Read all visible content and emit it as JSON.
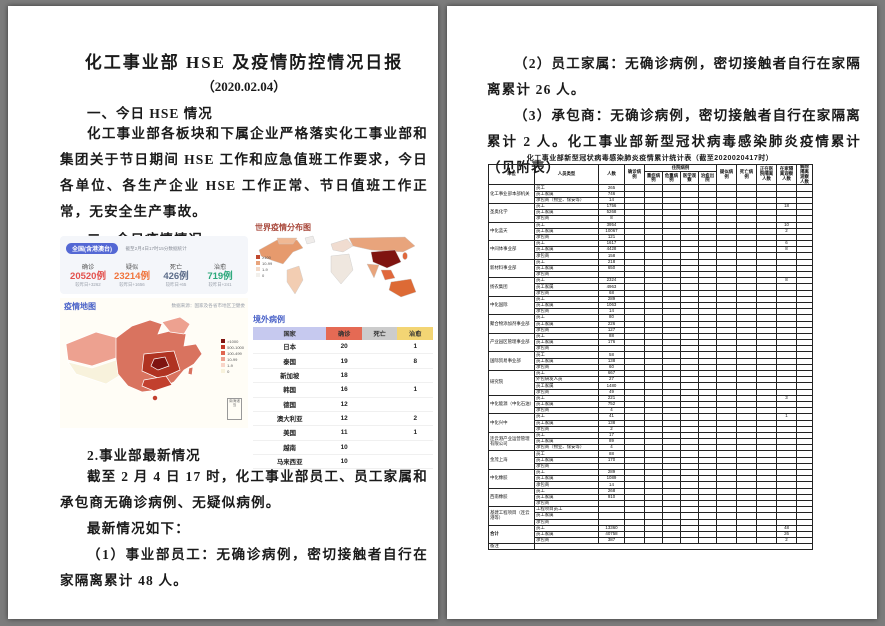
{
  "page1": {
    "title": "化工事业部 HSE 及疫情防控情况日报",
    "date": "（2020.02.04）",
    "section1_heading": "一、今日 HSE 情况",
    "para1": "化工事业部各板块和下属企业严格落实化工事业部和集团关于节日期间 HSE 工作和应急值班工作要求，今日各单位、各生产企业 HSE 工作正常、节日值班工作正常，无安全生产事故。",
    "section2_heading": "二、今日疫情情况",
    "stats": {
      "scope_pill": "全国(含港澳台)",
      "asof": "截至2月4日17时15分数据统计",
      "items": [
        {
          "label": "确诊",
          "value": "20520例",
          "delta": "较昨日+3262",
          "color": "#e3524e"
        },
        {
          "label": "疑似",
          "value": "23214例",
          "delta": "较昨日+1656",
          "color": "#f0743c"
        },
        {
          "label": "死亡",
          "value": "426例",
          "delta": "较昨日+65",
          "color": "#5d6d8a"
        },
        {
          "label": "治愈",
          "value": "719例",
          "delta": "较昨日+241",
          "color": "#2ba87b"
        }
      ]
    },
    "china_map": {
      "title": "疫情地图",
      "source": "数据来源：国家及各省市地区卫健委",
      "inset_label": "南海诸岛",
      "legend": [
        {
          "label": ">1000",
          "color": "#7f1410"
        },
        {
          "label": "500-1000",
          "color": "#c33a28"
        },
        {
          "label": "100-499",
          "color": "#e0654f"
        },
        {
          "label": "10-99",
          "color": "#eda190"
        },
        {
          "label": "1-9",
          "color": "#f8d5c8"
        },
        {
          "label": "0",
          "color": "#f8f2dc"
        }
      ]
    },
    "world_map": {
      "title": "世界疫情分布图",
      "legend": [
        {
          "label": "≥100",
          "color": "#c0492f"
        },
        {
          "label": "10-99",
          "color": "#e8a47c"
        },
        {
          "label": "1-9",
          "color": "#f2d9c8"
        },
        {
          "label": "0",
          "color": "#f2f0ec"
        }
      ]
    },
    "overseas": {
      "title": "境外病例",
      "headers": [
        {
          "label": "国家",
          "color": "#c6c9ef"
        },
        {
          "label": "确诊",
          "color": "#e56a54"
        },
        {
          "label": "死亡",
          "color": "#cccccc"
        },
        {
          "label": "治愈",
          "color": "#f3d574"
        }
      ],
      "rows": [
        [
          "日本",
          "20",
          "",
          "1"
        ],
        [
          "泰国",
          "19",
          "",
          "8"
        ],
        [
          "新加坡",
          "18",
          "",
          ""
        ],
        [
          "韩国",
          "16",
          "",
          "1"
        ],
        [
          "德国",
          "12",
          "",
          ""
        ],
        [
          "澳大利亚",
          "12",
          "",
          "2"
        ],
        [
          "美国",
          "11",
          "",
          "1"
        ],
        [
          "越南",
          "10",
          "",
          ""
        ],
        [
          "马来西亚",
          "10",
          "",
          ""
        ]
      ]
    },
    "section3_heading": "2.事业部最新情况",
    "para2": "截至 2 月 4 日 17 时，化工事业部员工、员工家属和承包商无确诊病例、无疑似病例。",
    "para3": "最新情况如下：",
    "para4": "（1）事业部员工：无确诊病例，密切接触者自行在家隔离累计 48 人。"
  },
  "page2": {
    "para1": "（2）员工家属：无确诊病例，密切接触者自行在家隔离累计 26 人。",
    "para2": "（3）承包商：无确诊病例，密切接触者自行在家隔离累计 2 人。化工事业部新型冠状病毒感染肺炎疫情累计（见附表）",
    "main_table": {
      "title": "化工事业部新型冠状病毒感染肺炎疫情累计统计表（截至2020020417时）",
      "headers": {
        "unit": "单位",
        "person_type": "人员类型",
        "count": "人数",
        "confirmed": "确诊病例",
        "hospital_group": "住院病例",
        "severe": "重症病例",
        "critical": "危重病例",
        "observe": "医学观察",
        "cured": "治愈出院",
        "suspected": "疑似病例",
        "death": "死亡病例",
        "hosp_iso": "正在医院隔离人数",
        "home_iso": "在家隔离观察人数",
        "released": "解除隔离观察人数"
      },
      "units": [
        {
          "name": "化工事业部本部机关",
          "rows": [
            [
              "员工",
              "265",
              ""
            ],
            [
              "员工家属",
              "746",
              ""
            ],
            [
              "承包商（物业、保安等）",
              "14",
              ""
            ]
          ]
        },
        {
          "name": "圣奥化学",
          "rows": [
            [
              "员工",
              "1756",
              "18"
            ],
            [
              "员工家属",
              "5268",
              ""
            ],
            [
              "承包商",
              "8",
              ""
            ]
          ]
        },
        {
          "name": "中化蓝天",
          "rows": [
            [
              "员工",
              "3954",
              "10*"
            ],
            [
              "员工家属",
              "10067",
              "2"
            ],
            [
              "承包商",
              "121*",
              ""
            ]
          ]
        },
        {
          "name": "中间体事业部",
          "rows": [
            [
              "员工",
              "1617",
              "6"
            ],
            [
              "员工家属",
              "4428",
              "8"
            ],
            [
              "承包商",
              "158",
              ""
            ]
          ]
        },
        {
          "name": "新材料事业部",
          "rows": [
            [
              "员工",
              "218",
              ""
            ],
            [
              "员工家属",
              "650",
              ""
            ],
            [
              "承包商",
              "",
              ""
            ]
          ]
        },
        {
          "name": "扬农集团",
          "rows": [
            [
              "员工",
              "2324",
              "8"
            ],
            [
              "员工家属",
              "4963",
              ""
            ],
            [
              "承包商",
              "68",
              ""
            ]
          ]
        },
        {
          "name": "中化国际",
          "rows": [
            [
              "员工",
              "289",
              ""
            ],
            [
              "员工家属",
              "1063",
              ""
            ],
            [
              "承包商",
              "14",
              ""
            ]
          ]
        },
        {
          "name": "聚合物添加剂事业部",
          "rows": [
            [
              "员工",
              "80",
              ""
            ],
            [
              "员工家属",
              "226",
              ""
            ],
            [
              "承包商",
              "127",
              ""
            ]
          ]
        },
        {
          "name": "产业园区管理事业部",
          "rows": [
            [
              "员工",
              "88",
              ""
            ],
            [
              "员工家属",
              "176",
              ""
            ],
            [
              "承包商",
              "",
              ""
            ]
          ]
        },
        {
          "name": "国际贸易事业部",
          "rows": [
            [
              "员工",
              "58",
              ""
            ],
            [
              "员工家属",
              "138",
              ""
            ],
            [
              "承包商",
              "60",
              ""
            ]
          ]
        },
        {
          "name": "研究院",
          "rows": [
            [
              "员工",
              "667",
              ""
            ],
            [
              "外包研发人员",
              "27",
              ""
            ],
            [
              "员工家属",
              "1480",
              ""
            ],
            [
              "承包商",
              "49",
              ""
            ]
          ]
        },
        {
          "name": "中化能源（中化石油）",
          "rows": [
            [
              "员工",
              "221",
              "3"
            ],
            [
              "员工家属",
              "752",
              ""
            ],
            [
              "承包商",
              "4",
              ""
            ]
          ]
        },
        {
          "name": "中化兴中",
          "rows": [
            [
              "员工",
              "41",
              "1*"
            ],
            [
              "员工家属",
              "138*",
              ""
            ],
            [
              "承包商",
              "2",
              ""
            ]
          ]
        },
        {
          "name": "连云港产业运营管理有限公司",
          "rows": [
            [
              "员工",
              "17",
              ""
            ],
            [
              "员工家属",
              "89",
              ""
            ],
            [
              "承包商（物业、保安等）",
              "4",
              ""
            ]
          ]
        },
        {
          "name": "金茂上海",
          "rows": [
            [
              "员工",
              "88",
              ""
            ],
            [
              "员工家属",
              "170",
              ""
            ],
            [
              "承包商",
              "",
              ""
            ]
          ]
        },
        {
          "name": "中化橡胶",
          "rows": [
            [
              "员工",
              "289",
              ""
            ],
            [
              "员工家属",
              "1089",
              ""
            ],
            [
              "承包商",
              "14",
              ""
            ]
          ]
        },
        {
          "name": "西南橡胶",
          "rows": [
            [
              "员工",
              "268",
              ""
            ],
            [
              "员工家属",
              "910",
              ""
            ],
            [
              "承包商",
              "",
              ""
            ]
          ]
        },
        {
          "name": "基建工程项目（连云港等）",
          "rows": [
            [
              "工程项目员工",
              "",
              ""
            ],
            [
              "员工家属",
              "",
              ""
            ],
            [
              "承包商",
              "",
              ""
            ]
          ]
        }
      ],
      "total": {
        "name": "合计",
        "rows": [
          [
            "员工",
            "13360",
            "48"
          ],
          [
            "员工家属",
            "40758*",
            "26"
          ],
          [
            "承包商",
            "387*",
            "2"
          ]
        ]
      },
      "note_label": "备注"
    }
  }
}
